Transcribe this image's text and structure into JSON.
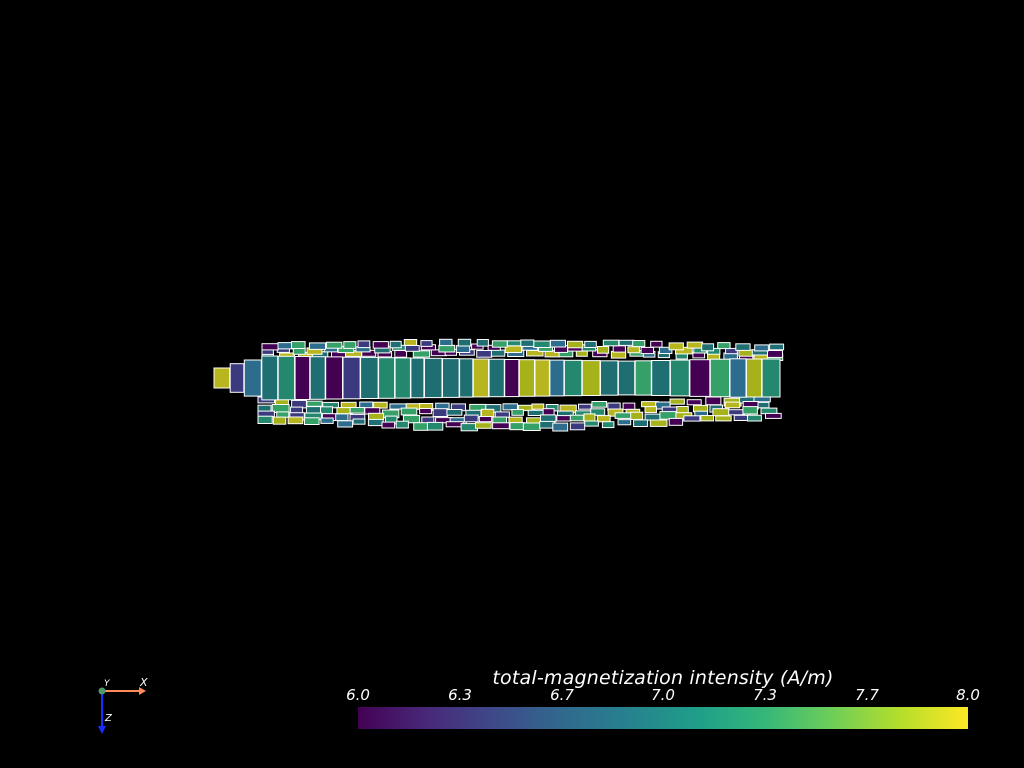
{
  "scalar_bar": {
    "title": "total-magnetization intensity (A/m)",
    "ticks": [
      "6.0",
      "6.3",
      "6.7",
      "7.0",
      "7.3",
      "7.7",
      "8.0"
    ],
    "range": [
      6.0,
      8.0
    ],
    "colormap": "viridis",
    "colormap_stops": [
      "#440154",
      "#482878",
      "#3e4989",
      "#31688e",
      "#26828e",
      "#1f9e89",
      "#35b779",
      "#6ece58",
      "#b5de2b",
      "#fde725"
    ]
  },
  "orientation_axes": {
    "x_label": "X",
    "y_label": "Y",
    "z_label": "Z",
    "x_color": "#ff8c5a",
    "y_color": "#4c9a6a",
    "z_color": "#1a2cff"
  },
  "model": {
    "cell_edge_color": "#ffffff",
    "background": "#000000"
  }
}
